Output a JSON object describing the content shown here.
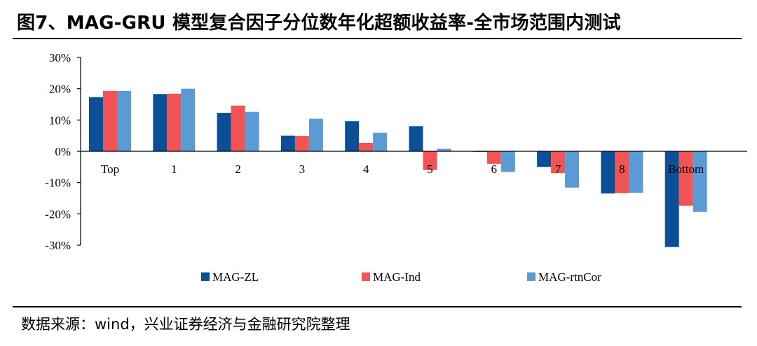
{
  "figure_title": "图7、MAG-GRU 模型复合因子分位数年化超额收益率-全市场范围内测试",
  "source_note": "数据来源：wind，兴业证券经济与金融研究院整理",
  "colors": {
    "MAG-ZL": "#0b4f96",
    "MAG-Ind": "#f05454",
    "MAG-rtnCor": "#5b9bd5",
    "axis": "#000000"
  },
  "chart_data": {
    "type": "bar",
    "title": "图7、MAG-GRU 模型复合因子分位数年化超额收益率-全市场范围内测试",
    "xlabel": "",
    "ylabel": "",
    "ylim": [
      -30,
      30
    ],
    "yticks": [
      30,
      20,
      10,
      0,
      -10,
      -20,
      -30
    ],
    "ytick_labels": [
      "30%",
      "20%",
      "10%",
      "0%",
      "-10%",
      "-20%",
      "-30%"
    ],
    "categories": [
      "Top",
      "1",
      "2",
      "3",
      "4",
      "5",
      "6",
      "7",
      "8",
      "Bottom"
    ],
    "series": [
      {
        "name": "MAG-ZL",
        "values": [
          17.3,
          18.3,
          12.3,
          5.0,
          9.6,
          8.0,
          -0.2,
          -5.0,
          -13.5,
          -30.6
        ]
      },
      {
        "name": "MAG-Ind",
        "values": [
          19.3,
          18.4,
          14.6,
          4.9,
          2.7,
          -6.0,
          -4.0,
          -7.0,
          -13.4,
          -17.4
        ]
      },
      {
        "name": "MAG-rtnCor",
        "values": [
          19.3,
          20.0,
          12.6,
          10.4,
          5.9,
          0.8,
          -6.6,
          -11.6,
          -13.3,
          -19.4
        ]
      }
    ],
    "legend_position": "bottom",
    "grid": false
  }
}
